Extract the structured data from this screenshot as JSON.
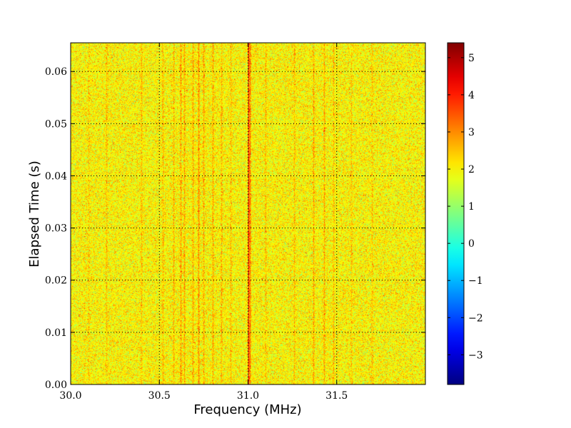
{
  "chart_data": {
    "type": "heatmap",
    "title": "",
    "xlabel": "Frequency (MHz)",
    "ylabel": "Elapsed Time (s)",
    "xlim": [
      30.0,
      32.0
    ],
    "ylim": [
      0.0,
      0.0655
    ],
    "x_ticks": [
      30.0,
      30.5,
      31.0,
      31.5
    ],
    "x_tick_labels": [
      "30.0",
      "30.5",
      "31.0",
      "31.5"
    ],
    "y_ticks": [
      0.0,
      0.01,
      0.02,
      0.03,
      0.04,
      0.05,
      0.06
    ],
    "y_tick_labels": [
      "0.00",
      "0.01",
      "0.02",
      "0.03",
      "0.04",
      "0.05",
      "0.06"
    ],
    "grid": true,
    "colormap": "jet",
    "color_range": [
      -3.8,
      5.4
    ],
    "colorbar_ticks": [
      -3,
      -2,
      -1,
      0,
      1,
      2,
      3,
      4,
      5
    ],
    "colorbar_tick_labels": [
      "−3",
      "−2",
      "−1",
      "0",
      "1",
      "2",
      "3",
      "4",
      "5"
    ],
    "background_level": 2.0,
    "noise_std": 0.5,
    "bright_channels": [
      {
        "frequency": 30.1,
        "level": 2.4
      },
      {
        "frequency": 30.2,
        "level": 2.5
      },
      {
        "frequency": 30.4,
        "level": 2.5
      },
      {
        "frequency": 30.52,
        "level": 2.5
      },
      {
        "frequency": 30.58,
        "level": 2.6
      },
      {
        "frequency": 30.62,
        "level": 2.8
      },
      {
        "frequency": 30.64,
        "level": 2.7
      },
      {
        "frequency": 30.69,
        "level": 2.7
      },
      {
        "frequency": 30.72,
        "level": 3.0
      },
      {
        "frequency": 30.75,
        "level": 2.7
      },
      {
        "frequency": 30.8,
        "level": 2.7
      },
      {
        "frequency": 30.85,
        "level": 2.6
      },
      {
        "frequency": 30.9,
        "level": 2.5
      },
      {
        "frequency": 31.0,
        "level": 4.2
      },
      {
        "frequency": 31.01,
        "level": 3.2
      },
      {
        "frequency": 31.1,
        "level": 2.5
      },
      {
        "frequency": 31.26,
        "level": 2.5
      },
      {
        "frequency": 31.37,
        "level": 2.7
      },
      {
        "frequency": 31.43,
        "level": 2.7
      },
      {
        "frequency": 31.48,
        "level": 2.5
      },
      {
        "frequency": 31.58,
        "level": 2.4
      },
      {
        "frequency": 31.7,
        "level": 2.4
      }
    ]
  }
}
